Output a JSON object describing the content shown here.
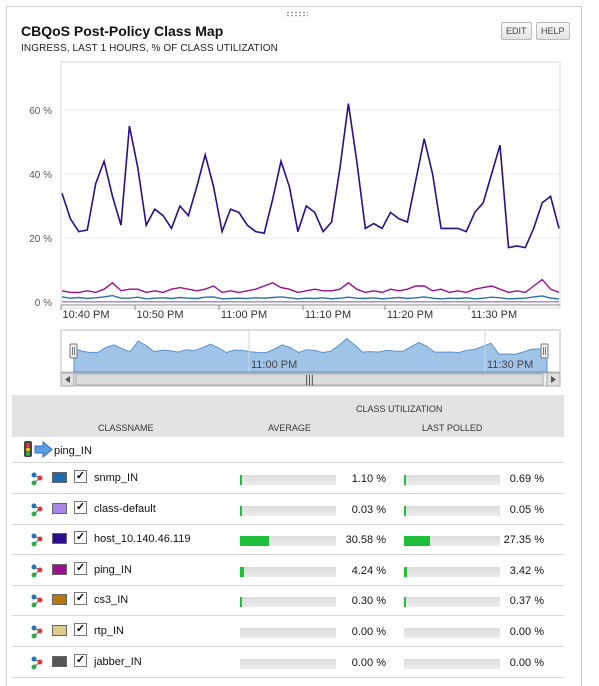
{
  "header": {
    "title": "CBQoS Post-Policy Class Map",
    "subtitle": "INGRESS, LAST 1 HOURS, % OF CLASS UTILIZATION",
    "edit_label": "EDIT",
    "help_label": "HELP"
  },
  "chart_data": {
    "type": "line",
    "ylim": [
      0,
      75
    ],
    "y_ticks": [
      "60 %",
      "40 %",
      "20 %",
      "0 %"
    ],
    "x_ticks": [
      "10:40 PM",
      "10:50 PM",
      "11:00 PM",
      "11:10 PM",
      "11:20 PM",
      "11:30 PM"
    ],
    "grid": true,
    "series": [
      {
        "name": "host_10.140.46.119",
        "color": "#2a0e8a",
        "values": [
          34,
          26,
          22,
          22.5,
          37,
          44,
          33,
          24,
          55,
          42,
          24,
          29,
          27,
          23,
          30,
          27,
          36,
          46,
          36,
          22,
          29,
          28,
          24,
          22,
          21.5,
          32,
          44,
          36,
          22,
          30,
          28,
          22,
          25,
          42,
          62,
          44,
          23,
          24.5,
          23,
          28,
          26,
          25,
          38,
          51,
          40,
          23,
          23,
          23,
          22,
          28,
          31,
          40,
          49,
          17,
          17.5,
          17,
          23,
          31,
          33,
          23
        ]
      },
      {
        "name": "ping_IN",
        "color": "#9b0f8e",
        "values": [
          3.5,
          3,
          3,
          3.5,
          3,
          4,
          6,
          3.5,
          4,
          4,
          3,
          3.5,
          3,
          4,
          4.5,
          4,
          3.5,
          4,
          5,
          3,
          3.5,
          3,
          3.5,
          4,
          5,
          6,
          4.5,
          4,
          3,
          3.5,
          4,
          3.5,
          3.5,
          4,
          6,
          4,
          3,
          3.5,
          3,
          4,
          3.5,
          4,
          5,
          5,
          3.5,
          4,
          3,
          3.5,
          3,
          4,
          4.5,
          5,
          4,
          3,
          3.5,
          3,
          5,
          7,
          4,
          3
        ]
      },
      {
        "name": "snmp_IN",
        "color": "#2c70a8",
        "values": [
          1.6,
          1.2,
          1.4,
          1.1,
          1.3,
          1.6,
          2,
          1.2,
          1.2,
          1.5,
          1,
          1.2,
          1.3,
          1.1,
          1.4,
          1.2,
          1.1,
          1.5,
          1.6,
          1,
          1.1,
          1.2,
          1.1,
          1.3,
          1.2,
          1.4,
          1.6,
          1.3,
          1,
          1.2,
          1.1,
          1.3,
          1,
          1.2,
          1.5,
          1.2,
          1.1,
          1.3,
          1,
          1.2,
          1.4,
          1.1,
          1.3,
          1.6,
          1.2,
          1,
          1.2,
          1.1,
          1.3,
          1,
          1.2,
          1.5,
          1.3,
          1,
          1.1,
          1.2,
          1.6,
          1.9,
          1.2,
          1
        ]
      },
      {
        "name": "class-default",
        "color": "#9a80e0",
        "values": [
          0.05,
          0.05,
          0.05,
          0.05,
          0.05,
          0.05,
          0.05,
          0.05,
          0.05,
          0.05,
          0.05,
          0.05,
          0.05,
          0.05,
          0.05,
          0.05,
          0.05,
          0.05,
          0.05,
          0.05,
          0.05,
          0.05,
          0.05,
          0.05,
          0.05,
          0.05,
          0.05,
          0.05,
          0.05,
          0.05,
          0.05,
          0.05,
          0.05,
          0.05,
          0.05,
          0.05,
          0.05,
          0.05,
          0.05,
          0.05,
          0.05,
          0.05,
          0.05,
          0.05,
          0.05,
          0.05,
          0.05,
          0.05,
          0.05,
          0.05,
          0.05,
          0.05,
          0.05,
          0.05,
          0.05,
          0.05,
          0.05,
          0.05,
          0.05,
          0.05
        ]
      }
    ]
  },
  "navigator": {
    "x_ticks": [
      "11:00 PM",
      "11:30 PM"
    ],
    "scroll_grip": "|||"
  },
  "table": {
    "group_header": "CLASS UTILIZATION",
    "col_classname": "CLASSNAME",
    "col_average": "AVERAGE",
    "col_last_polled": "LAST POLLED",
    "group_label": "ping_IN",
    "rows": [
      {
        "name": "snmp_IN",
        "color": "#1f6aa8",
        "avg": "1.10 %",
        "avg_fraction": 0.011,
        "last": "0.69 %",
        "last_fraction": 0.0069
      },
      {
        "name": "class-default",
        "color": "#a986e8",
        "avg": "0.03 %",
        "avg_fraction": 0.0003,
        "last": "0.05 %",
        "last_fraction": 0.0005
      },
      {
        "name": "host_10.140.46.119",
        "color": "#2a0e8a",
        "avg": "30.58 %",
        "avg_fraction": 0.3058,
        "last": "27.35 %",
        "last_fraction": 0.2735
      },
      {
        "name": "ping_IN",
        "color": "#9b0f8e",
        "avg": "4.24 %",
        "avg_fraction": 0.0424,
        "last": "3.42 %",
        "last_fraction": 0.0342
      },
      {
        "name": "cs3_IN",
        "color": "#b7770e",
        "avg": "0.30 %",
        "avg_fraction": 0.003,
        "last": "0.37 %",
        "last_fraction": 0.0037
      },
      {
        "name": "rtp_IN",
        "color": "#dccb8a",
        "avg": "0.00 %",
        "avg_fraction": 0,
        "last": "0.00 %",
        "last_fraction": 0
      },
      {
        "name": "jabber_IN",
        "color": "#555555",
        "avg": "0.00 %",
        "avg_fraction": 0,
        "last": "0.00 %",
        "last_fraction": 0
      }
    ]
  }
}
